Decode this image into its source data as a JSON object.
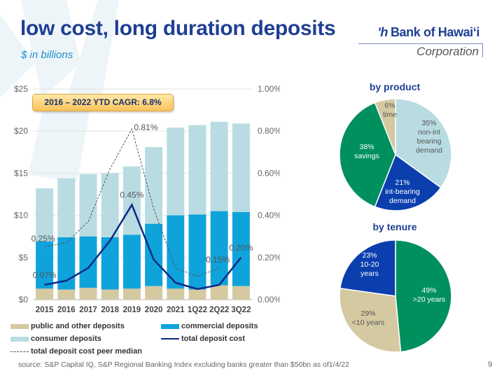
{
  "header": {
    "title": "low cost, long duration deposits",
    "subtitle": "$ in billions"
  },
  "logo": {
    "name": "Bank of Hawaiʻi",
    "mark": "ʹh",
    "corporation": "Corporation"
  },
  "callout": "2016 – 2022 YTD CAGR: 6.8%",
  "colors": {
    "public": "#d4c9a1",
    "commercial": "#0fa3dc",
    "consumer": "#b8dce2",
    "total_cost": "#0b2a86",
    "peer_median": "#555555",
    "title": "#1f3f94",
    "non_int_demand": "#b8dce2",
    "int_demand": "#0b3fae",
    "savings": "#00905e",
    "time": "#d4c9a1"
  },
  "chart_data": [
    {
      "type": "bar",
      "stacked": true,
      "title": "",
      "categories": [
        "2015",
        "2016",
        "2017",
        "2018",
        "2019",
        "2020",
        "2021",
        "1Q22",
        "2Q22",
        "3Q22"
      ],
      "series": [
        {
          "name": "public and other deposits",
          "values": [
            1.3,
            1.2,
            1.4,
            1.2,
            1.3,
            1.6,
            1.3,
            1.2,
            1.7,
            1.6
          ]
        },
        {
          "name": "commercial deposits",
          "values": [
            5.6,
            6.2,
            6.1,
            6.2,
            6.4,
            7.4,
            8.7,
            8.9,
            8.8,
            8.8
          ]
        },
        {
          "name": "consumer deposits",
          "values": [
            6.3,
            7.0,
            7.4,
            7.6,
            8.1,
            9.1,
            10.4,
            10.6,
            10.6,
            10.5
          ]
        }
      ],
      "lines": [
        {
          "name": "total deposit cost",
          "axis": "right",
          "style": "solid",
          "values": [
            0.07,
            0.09,
            0.15,
            0.28,
            0.45,
            0.19,
            0.08,
            0.05,
            0.07,
            0.2
          ]
        },
        {
          "name": "total deposit cost peer median",
          "axis": "right",
          "style": "dashed",
          "values": [
            0.25,
            0.27,
            0.37,
            0.62,
            0.81,
            0.43,
            0.15,
            0.11,
            0.15,
            null
          ]
        }
      ],
      "data_labels": [
        {
          "text": "0.25%",
          "series": "total deposit cost peer median",
          "category": "2015"
        },
        {
          "text": "0.07%",
          "series": "total deposit cost",
          "category": "2015"
        },
        {
          "text": "0.45%",
          "series": "total deposit cost",
          "category": "2019"
        },
        {
          "text": "0.81%",
          "series": "total deposit cost peer median",
          "category": "2019"
        },
        {
          "text": "0.15%",
          "series": "total deposit cost peer median",
          "category": "2Q22"
        },
        {
          "text": "0.20%",
          "series": "total deposit cost",
          "category": "3Q22"
        }
      ],
      "y_left": {
        "ticks": [
          "$0",
          "$5",
          "$10",
          "$15",
          "$20",
          "$25"
        ],
        "ylim": [
          0,
          25
        ]
      },
      "y_right": {
        "ticks": [
          "0.00%",
          "0.20%",
          "0.40%",
          "0.60%",
          "0.80%",
          "1.00%"
        ],
        "ylim": [
          0,
          1.0
        ]
      },
      "grid": true,
      "legend": {
        "position": "bottom",
        "entries": [
          {
            "label": "public and other deposits",
            "kind": "bar"
          },
          {
            "label": "commercial deposits",
            "kind": "bar"
          },
          {
            "label": "consumer deposits",
            "kind": "bar"
          },
          {
            "label": "total deposit cost",
            "kind": "line"
          },
          {
            "label": "total deposit cost peer median",
            "kind": "dashed"
          }
        ]
      }
    },
    {
      "type": "pie",
      "title": "by product",
      "slices": [
        {
          "label": "non-int bearing demand",
          "value": 35,
          "text": [
            "35%",
            "non-int",
            "bearing",
            "demand"
          ],
          "color_key": "non_int_demand"
        },
        {
          "label": "int-bearing demand",
          "value": 21,
          "text": [
            "21%",
            "int-bearing",
            "demand"
          ],
          "color_key": "int_demand"
        },
        {
          "label": "savings",
          "value": 38,
          "text": [
            "38%",
            "savings"
          ],
          "color_key": "savings"
        },
        {
          "label": "time",
          "value": 6,
          "text": [
            "6%",
            "time"
          ],
          "color_key": "time"
        }
      ]
    },
    {
      "type": "pie",
      "title": "by tenure",
      "slices": [
        {
          "label": ">20 years",
          "value": 49,
          "text": [
            "49%",
            ">20 years"
          ],
          "color_key": "savings"
        },
        {
          "label": "<10 years",
          "value": 29,
          "text": [
            "29%",
            "<10 years"
          ],
          "color_key": "time"
        },
        {
          "label": "10-20 years",
          "value": 23,
          "text": [
            "23%",
            "10-20",
            "years"
          ],
          "color_key": "int_demand"
        }
      ]
    }
  ],
  "footer": {
    "source": "source: S&P Capital IQ, S&P Regional Banking Index excluding banks greater than $50bn as of1/4/22",
    "page": "9"
  }
}
